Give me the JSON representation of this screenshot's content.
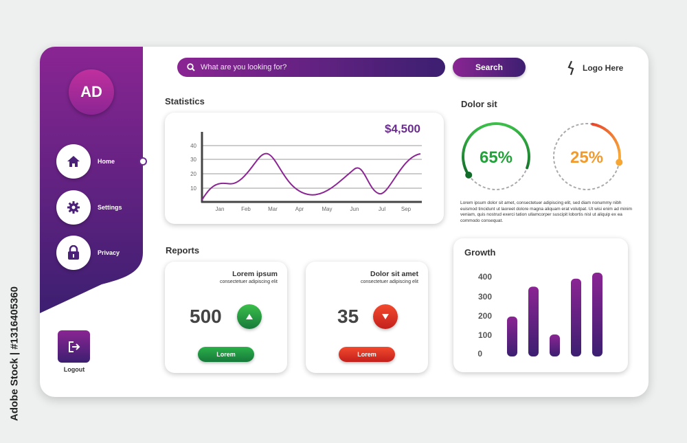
{
  "watermark": "Adobe Stock | #1316405360",
  "sidebar": {
    "avatar": "AD",
    "items": [
      {
        "label": "Home",
        "icon": "home-icon"
      },
      {
        "label": "Settings",
        "icon": "gear-icon"
      },
      {
        "label": "Privacy",
        "icon": "lock-icon"
      }
    ],
    "logout": "Logout"
  },
  "header": {
    "search_placeholder": "What are you looking for?",
    "search_button": "Search",
    "logo": "Logo Here"
  },
  "statistics": {
    "title": "Statistics",
    "value": "$4,500",
    "chart_data": {
      "type": "line",
      "categories": [
        "Jan",
        "Feb",
        "Mar",
        "Apr",
        "May",
        "Jun",
        "Jul",
        "Sep"
      ],
      "yticks": [
        10,
        20,
        30,
        40
      ],
      "grid": true
    }
  },
  "dolor": {
    "title": "Dolor sit",
    "gauges": [
      {
        "label": "65%",
        "value": 0.65,
        "color": "#1e9e3a"
      },
      {
        "label": "25%",
        "value": 0.25,
        "color": "#f39a2c"
      }
    ],
    "text": "Lorem ipsum dolor sit amet, consectetuer adipiscing elit, sed diam nonummy nibh euismod tincidunt ut laoreet dolore magna aliquam erat volutpat. Ut wisi enim ad minim veniam, quis nostrud exerci tation ullamcorper suscipit lobortis nisl ut aliquip ex ea commodo consequat."
  },
  "reports": {
    "title": "Reports",
    "cards": [
      {
        "title": "Lorem ipsum",
        "subtitle": "consectetuer adipiscing elit",
        "value": "500",
        "trend": "up",
        "button": "Lorem"
      },
      {
        "title": "Dolor sit amet",
        "subtitle": "consectetuer adipiscing elit",
        "value": "35",
        "trend": "down",
        "button": "Lorem"
      }
    ]
  },
  "growth": {
    "title": "Growth",
    "chart_data": {
      "type": "bar",
      "yticks": [
        "400",
        "300",
        "200",
        "100",
        "0"
      ],
      "values": [
        200,
        350,
        110,
        390,
        420
      ],
      "ylim": [
        0,
        420
      ]
    }
  }
}
